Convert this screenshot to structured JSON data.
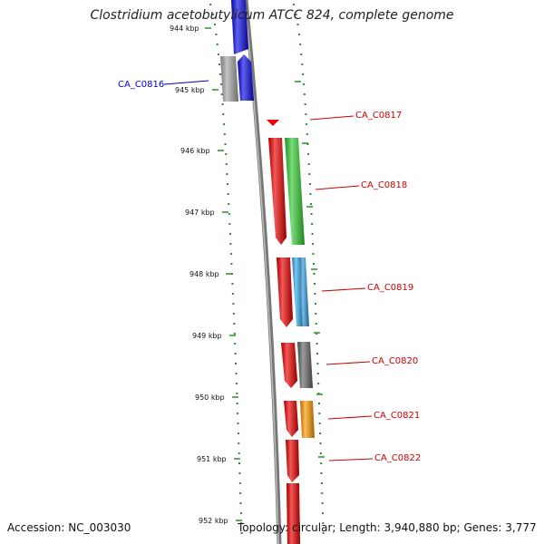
{
  "title": "Clostridium acetobutylicum ATCC 824, complete genome",
  "footer": {
    "accession": "Accession: NC_003030",
    "topology": "Topology: circular; Length: 3,940,880 bp; Genes: 3,777"
  },
  "colors": {
    "backbone": "#777777",
    "ticks": "#2e8b2e",
    "selected_label": "#0000cc",
    "label": "#cc0000"
  },
  "ticks": [
    "944 kbp",
    "945 kbp",
    "946 kbp",
    "947 kbp",
    "948 kbp",
    "949 kbp",
    "950 kbp",
    "951 kbp",
    "952 kbp"
  ],
  "genes": [
    {
      "name": "",
      "strand": "outer",
      "color": "#0a0ae6"
    },
    {
      "name": "CA_C0816",
      "strand": "outer",
      "color": "#0a0ae6",
      "selected": true
    },
    {
      "name": "",
      "strand": "inner",
      "color": "#a8a8a8"
    },
    {
      "name": "CA_C0817",
      "strand": "inner",
      "color": "#ee0000"
    },
    {
      "name": "",
      "strand": "inner",
      "color": "#ee0000"
    },
    {
      "name": "CA_C0818",
      "strand": "outer",
      "color": "#33cc33"
    },
    {
      "name": "",
      "strand": "inner",
      "color": "#ee0000"
    },
    {
      "name": "CA_C0819",
      "strand": "outer",
      "color": "#33aaee"
    },
    {
      "name": "",
      "strand": "outer",
      "color": "#3399dd"
    },
    {
      "name": "",
      "strand": "inner",
      "color": "#ee0000"
    },
    {
      "name": "CA_C0820",
      "strand": "outer",
      "color": "#666666"
    },
    {
      "name": "",
      "strand": "inner",
      "color": "#ee0000"
    },
    {
      "name": "CA_C0821",
      "strand": "outer",
      "color": "#ff9900"
    },
    {
      "name": "CA_C0822",
      "strand": "inner",
      "color": "#ee0000"
    },
    {
      "name": "",
      "strand": "inner",
      "color": "#ee0000"
    }
  ]
}
